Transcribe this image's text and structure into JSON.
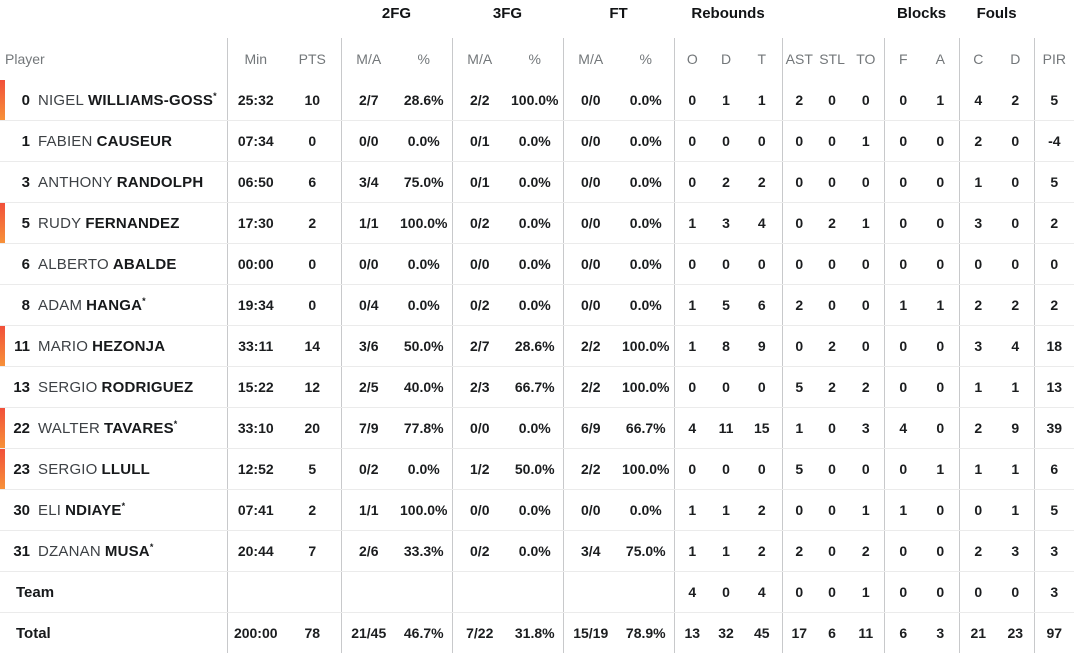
{
  "header": {
    "groups": {
      "fg2": "2FG",
      "fg3": "3FG",
      "ft": "FT",
      "rebounds": "Rebounds",
      "blocks": "Blocks",
      "fouls": "Fouls"
    },
    "columns": {
      "player": "Player",
      "min": "Min",
      "pts": "PTS",
      "ma": "M/A",
      "pct": "%",
      "reb_o": "O",
      "reb_d": "D",
      "reb_t": "T",
      "ast": "AST",
      "stl": "STL",
      "to": "TO",
      "blk_f": "F",
      "blk_a": "A",
      "foul_c": "C",
      "foul_d": "D",
      "pir": "PIR"
    }
  },
  "colors": {
    "oncourt_bar_top": "#f1503a",
    "oncourt_bar_bottom": "#f79139",
    "divider": "#c8c9cb",
    "row_line": "#ebebeb",
    "header_text": "#73777a",
    "text_dark": "#17191b"
  },
  "players": [
    {
      "number": "0",
      "first": "NIGEL",
      "last": "WILLIAMS-GOSS",
      "star": "*",
      "oncourt": true,
      "min": "25:32",
      "pts": "10",
      "fg2_ma": "2/7",
      "fg2_pct": "28.6%",
      "fg3_ma": "2/2",
      "fg3_pct": "100.0%",
      "ft_ma": "0/0",
      "ft_pct": "0.0%",
      "reb_o": "0",
      "reb_d": "1",
      "reb_t": "1",
      "ast": "2",
      "stl": "0",
      "to": "0",
      "blk_f": "0",
      "blk_a": "1",
      "foul_c": "4",
      "foul_d": "2",
      "pir": "5"
    },
    {
      "number": "1",
      "first": "FABIEN",
      "last": "CAUSEUR",
      "star": "",
      "oncourt": false,
      "min": "07:34",
      "pts": "0",
      "fg2_ma": "0/0",
      "fg2_pct": "0.0%",
      "fg3_ma": "0/1",
      "fg3_pct": "0.0%",
      "ft_ma": "0/0",
      "ft_pct": "0.0%",
      "reb_o": "0",
      "reb_d": "0",
      "reb_t": "0",
      "ast": "0",
      "stl": "0",
      "to": "1",
      "blk_f": "0",
      "blk_a": "0",
      "foul_c": "2",
      "foul_d": "0",
      "pir": "-4"
    },
    {
      "number": "3",
      "first": "ANTHONY",
      "last": "RANDOLPH",
      "star": "",
      "oncourt": false,
      "min": "06:50",
      "pts": "6",
      "fg2_ma": "3/4",
      "fg2_pct": "75.0%",
      "fg3_ma": "0/1",
      "fg3_pct": "0.0%",
      "ft_ma": "0/0",
      "ft_pct": "0.0%",
      "reb_o": "0",
      "reb_d": "2",
      "reb_t": "2",
      "ast": "0",
      "stl": "0",
      "to": "0",
      "blk_f": "0",
      "blk_a": "0",
      "foul_c": "1",
      "foul_d": "0",
      "pir": "5"
    },
    {
      "number": "5",
      "first": "RUDY",
      "last": "FERNANDEZ",
      "star": "",
      "oncourt": true,
      "min": "17:30",
      "pts": "2",
      "fg2_ma": "1/1",
      "fg2_pct": "100.0%",
      "fg3_ma": "0/2",
      "fg3_pct": "0.0%",
      "ft_ma": "0/0",
      "ft_pct": "0.0%",
      "reb_o": "1",
      "reb_d": "3",
      "reb_t": "4",
      "ast": "0",
      "stl": "2",
      "to": "1",
      "blk_f": "0",
      "blk_a": "0",
      "foul_c": "3",
      "foul_d": "0",
      "pir": "2"
    },
    {
      "number": "6",
      "first": "ALBERTO",
      "last": "ABALDE",
      "star": "",
      "oncourt": false,
      "min": "00:00",
      "pts": "0",
      "fg2_ma": "0/0",
      "fg2_pct": "0.0%",
      "fg3_ma": "0/0",
      "fg3_pct": "0.0%",
      "ft_ma": "0/0",
      "ft_pct": "0.0%",
      "reb_o": "0",
      "reb_d": "0",
      "reb_t": "0",
      "ast": "0",
      "stl": "0",
      "to": "0",
      "blk_f": "0",
      "blk_a": "0",
      "foul_c": "0",
      "foul_d": "0",
      "pir": "0"
    },
    {
      "number": "8",
      "first": "ADAM",
      "last": "HANGA",
      "star": "*",
      "oncourt": false,
      "min": "19:34",
      "pts": "0",
      "fg2_ma": "0/4",
      "fg2_pct": "0.0%",
      "fg3_ma": "0/2",
      "fg3_pct": "0.0%",
      "ft_ma": "0/0",
      "ft_pct": "0.0%",
      "reb_o": "1",
      "reb_d": "5",
      "reb_t": "6",
      "ast": "2",
      "stl": "0",
      "to": "0",
      "blk_f": "1",
      "blk_a": "1",
      "foul_c": "2",
      "foul_d": "2",
      "pir": "2"
    },
    {
      "number": "11",
      "first": "MARIO",
      "last": "HEZONJA",
      "star": "",
      "oncourt": true,
      "min": "33:11",
      "pts": "14",
      "fg2_ma": "3/6",
      "fg2_pct": "50.0%",
      "fg3_ma": "2/7",
      "fg3_pct": "28.6%",
      "ft_ma": "2/2",
      "ft_pct": "100.0%",
      "reb_o": "1",
      "reb_d": "8",
      "reb_t": "9",
      "ast": "0",
      "stl": "2",
      "to": "0",
      "blk_f": "0",
      "blk_a": "0",
      "foul_c": "3",
      "foul_d": "4",
      "pir": "18"
    },
    {
      "number": "13",
      "first": "SERGIO",
      "last": "RODRIGUEZ",
      "star": "",
      "oncourt": false,
      "min": "15:22",
      "pts": "12",
      "fg2_ma": "2/5",
      "fg2_pct": "40.0%",
      "fg3_ma": "2/3",
      "fg3_pct": "66.7%",
      "ft_ma": "2/2",
      "ft_pct": "100.0%",
      "reb_o": "0",
      "reb_d": "0",
      "reb_t": "0",
      "ast": "5",
      "stl": "2",
      "to": "2",
      "blk_f": "0",
      "blk_a": "0",
      "foul_c": "1",
      "foul_d": "1",
      "pir": "13"
    },
    {
      "number": "22",
      "first": "WALTER",
      "last": "TAVARES",
      "star": "*",
      "oncourt": true,
      "min": "33:10",
      "pts": "20",
      "fg2_ma": "7/9",
      "fg2_pct": "77.8%",
      "fg3_ma": "0/0",
      "fg3_pct": "0.0%",
      "ft_ma": "6/9",
      "ft_pct": "66.7%",
      "reb_o": "4",
      "reb_d": "11",
      "reb_t": "15",
      "ast": "1",
      "stl": "0",
      "to": "3",
      "blk_f": "4",
      "blk_a": "0",
      "foul_c": "2",
      "foul_d": "9",
      "pir": "39"
    },
    {
      "number": "23",
      "first": "SERGIO",
      "last": "LLULL",
      "star": "",
      "oncourt": true,
      "min": "12:52",
      "pts": "5",
      "fg2_ma": "0/2",
      "fg2_pct": "0.0%",
      "fg3_ma": "1/2",
      "fg3_pct": "50.0%",
      "ft_ma": "2/2",
      "ft_pct": "100.0%",
      "reb_o": "0",
      "reb_d": "0",
      "reb_t": "0",
      "ast": "5",
      "stl": "0",
      "to": "0",
      "blk_f": "0",
      "blk_a": "1",
      "foul_c": "1",
      "foul_d": "1",
      "pir": "6"
    },
    {
      "number": "30",
      "first": "ELI",
      "last": "NDIAYE",
      "star": "*",
      "oncourt": false,
      "min": "07:41",
      "pts": "2",
      "fg2_ma": "1/1",
      "fg2_pct": "100.0%",
      "fg3_ma": "0/0",
      "fg3_pct": "0.0%",
      "ft_ma": "0/0",
      "ft_pct": "0.0%",
      "reb_o": "1",
      "reb_d": "1",
      "reb_t": "2",
      "ast": "0",
      "stl": "0",
      "to": "1",
      "blk_f": "1",
      "blk_a": "0",
      "foul_c": "0",
      "foul_d": "1",
      "pir": "5"
    },
    {
      "number": "31",
      "first": "DZANAN",
      "last": "MUSA",
      "star": "*",
      "oncourt": false,
      "min": "20:44",
      "pts": "7",
      "fg2_ma": "2/6",
      "fg2_pct": "33.3%",
      "fg3_ma": "0/2",
      "fg3_pct": "0.0%",
      "ft_ma": "3/4",
      "ft_pct": "75.0%",
      "reb_o": "1",
      "reb_d": "1",
      "reb_t": "2",
      "ast": "2",
      "stl": "0",
      "to": "2",
      "blk_f": "0",
      "blk_a": "0",
      "foul_c": "2",
      "foul_d": "3",
      "pir": "3"
    }
  ],
  "team_row": {
    "label": "Team",
    "min": "",
    "pts": "",
    "fg2_ma": "",
    "fg2_pct": "",
    "fg3_ma": "",
    "fg3_pct": "",
    "ft_ma": "",
    "ft_pct": "",
    "reb_o": "4",
    "reb_d": "0",
    "reb_t": "4",
    "ast": "0",
    "stl": "0",
    "to": "1",
    "blk_f": "0",
    "blk_a": "0",
    "foul_c": "0",
    "foul_d": "0",
    "pir": "3"
  },
  "total_row": {
    "label": "Total",
    "min": "200:00",
    "pts": "78",
    "fg2_ma": "21/45",
    "fg2_pct": "46.7%",
    "fg3_ma": "7/22",
    "fg3_pct": "31.8%",
    "ft_ma": "15/19",
    "ft_pct": "78.9%",
    "reb_o": "13",
    "reb_d": "32",
    "reb_t": "45",
    "ast": "17",
    "stl": "6",
    "to": "11",
    "blk_f": "6",
    "blk_a": "3",
    "foul_c": "21",
    "foul_d": "23",
    "pir": "97"
  }
}
